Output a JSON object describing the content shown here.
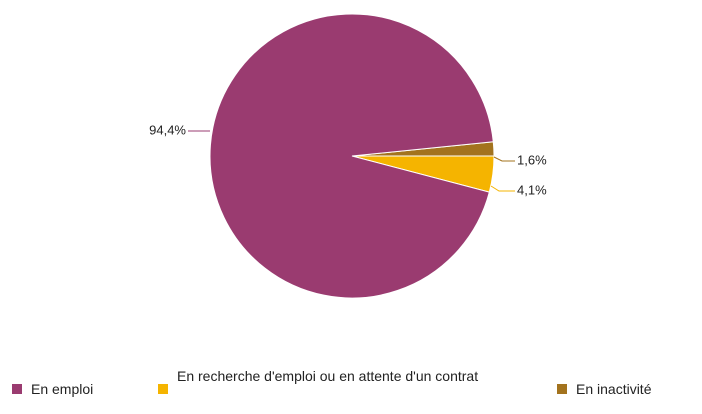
{
  "chart_data": {
    "type": "pie",
    "categories": [
      "En emploi",
      "En recherche d'emploi ou en attente d'un contrat",
      "En inactivité"
    ],
    "values": [
      94.4,
      4.1,
      1.6
    ],
    "value_labels": [
      "94,4%",
      "4,1%",
      "1,6%"
    ],
    "colors": [
      "#9a3b70",
      "#f5b400",
      "#a3731e"
    ],
    "legend": "bottom"
  }
}
